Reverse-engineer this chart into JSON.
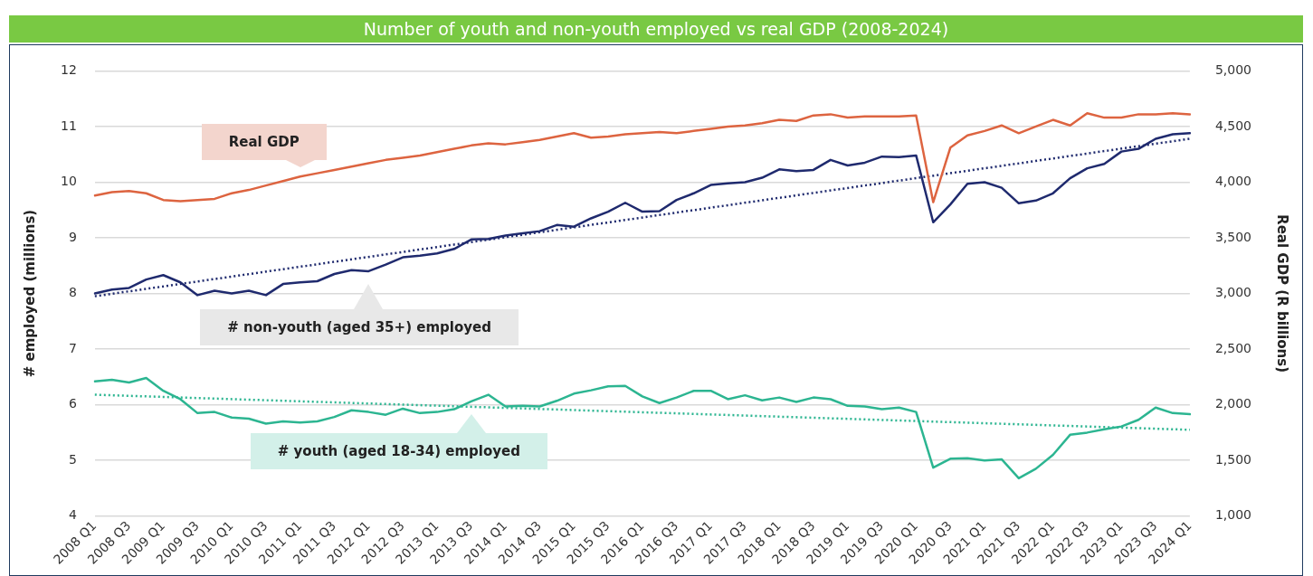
{
  "chart_data": {
    "type": "line",
    "title": "Number of youth and non-youth employed vs real GDP (2008-2024)",
    "ylabel": "# employed (millions)",
    "y2label": "Real GDP (R billions)",
    "categories": [
      "2008 Q1",
      null,
      "2008 Q3",
      null,
      "2009 Q1",
      null,
      "2009 Q3",
      null,
      "2010 Q1",
      null,
      "2010 Q3",
      null,
      "2011 Q1",
      null,
      "2011 Q3",
      null,
      "2012 Q1",
      null,
      "2012 Q3",
      null,
      "2013 Q1",
      null,
      "2013 Q3",
      null,
      "2014 Q1",
      null,
      "2014 Q3",
      null,
      "2015 Q1",
      null,
      "2015 Q3",
      null,
      "2016 Q1",
      null,
      "2016 Q3",
      null,
      "2017 Q1",
      null,
      "2017 Q3",
      null,
      "2018 Q1",
      null,
      "2018 Q3",
      null,
      "2019 Q1",
      null,
      "2019 Q3",
      null,
      "2020 Q1",
      null,
      "2020 Q3",
      null,
      "2021 Q1",
      null,
      "2021 Q3",
      null,
      "2022 Q1",
      null,
      "2022 Q3",
      null,
      "2023 Q1",
      null,
      "2023 Q3",
      null,
      "2024 Q1"
    ],
    "series": [
      {
        "name": "Real GDP",
        "color": "#dd6440",
        "axis": "y2",
        "values": [
          3880,
          3910,
          3920,
          3900,
          3840,
          3830,
          3840,
          3850,
          3900,
          3930,
          3970,
          4010,
          4050,
          4080,
          4110,
          4140,
          4170,
          4200,
          4220,
          4240,
          4270,
          4300,
          4330,
          4350,
          4340,
          4360,
          4380,
          4410,
          4440,
          4400,
          4410,
          4430,
          4440,
          4450,
          4440,
          4460,
          4480,
          4500,
          4510,
          4530,
          4560,
          4550,
          4600,
          4610,
          4580,
          4590,
          4590,
          4590,
          4600,
          3820,
          4310,
          4420,
          4460,
          4510,
          4440,
          4500,
          4560,
          4510,
          4620,
          4580,
          4580,
          4610,
          4610,
          4620,
          4610
        ]
      },
      {
        "name": "# non-youth (aged 35+) employed",
        "color": "#1f2a6e",
        "values": [
          8.0,
          8.07,
          8.1,
          8.25,
          8.33,
          8.2,
          7.97,
          8.05,
          8.0,
          8.05,
          7.97,
          8.17,
          8.2,
          8.22,
          8.35,
          8.42,
          8.4,
          8.52,
          8.65,
          8.68,
          8.72,
          8.8,
          8.97,
          8.98,
          9.04,
          9.08,
          9.12,
          9.23,
          9.2,
          9.35,
          9.47,
          9.63,
          9.47,
          9.48,
          9.68,
          9.8,
          9.95,
          9.98,
          10.0,
          10.08,
          10.23,
          10.2,
          10.22,
          10.4,
          10.3,
          10.35,
          10.46,
          10.45,
          10.48,
          9.28,
          9.6,
          9.97,
          10.0,
          9.9,
          9.62,
          9.67,
          9.8,
          10.07,
          10.25,
          10.33,
          10.55,
          10.6,
          10.78,
          10.86,
          10.88
        ]
      },
      {
        "name": "# youth (aged 18-34) employed",
        "color": "#2cb591",
        "values": [
          6.42,
          6.45,
          6.4,
          6.48,
          6.25,
          6.1,
          5.85,
          5.87,
          5.77,
          5.75,
          5.66,
          5.7,
          5.68,
          5.7,
          5.78,
          5.9,
          5.87,
          5.82,
          5.93,
          5.85,
          5.87,
          5.92,
          6.06,
          6.18,
          5.97,
          5.98,
          5.97,
          6.07,
          6.2,
          6.26,
          6.33,
          6.34,
          6.15,
          6.03,
          6.13,
          6.25,
          6.25,
          6.1,
          6.17,
          6.08,
          6.13,
          6.05,
          6.13,
          6.1,
          5.98,
          5.97,
          5.92,
          5.95,
          5.87,
          4.87,
          5.03,
          5.04,
          5.0,
          5.02,
          4.68,
          4.85,
          5.1,
          5.46,
          5.5,
          5.56,
          5.61,
          5.73,
          5.95,
          5.85,
          5.83
        ]
      },
      {
        "type": "line",
        "line_style": "dotted",
        "color": "#1f2a6e",
        "x": [
          "2008 Q1",
          "2024 Q1"
        ],
        "values": [
          7.95,
          10.78
        ]
      },
      {
        "type": "line",
        "line_style": "dotted",
        "color": "#2cb591",
        "x": [
          "2008 Q1",
          "2024 Q1"
        ],
        "values": [
          6.18,
          5.55
        ]
      }
    ],
    "ylim": [
      4,
      12
    ],
    "yticks": [
      4,
      5,
      6,
      7,
      8,
      9,
      10,
      11,
      12
    ],
    "y2lim": [
      1000,
      5000
    ],
    "y2ticks": [
      {
        "value": 1000,
        "label": "1,000"
      },
      {
        "value": 1500,
        "label": "1,500"
      },
      {
        "value": 2000,
        "label": "2,000"
      },
      {
        "value": 2500,
        "label": "2,500"
      },
      {
        "value": 3000,
        "label": "3,000"
      },
      {
        "value": 3500,
        "label": "3,500"
      },
      {
        "value": 4000,
        "label": "4,000"
      },
      {
        "value": 4500,
        "label": "4,500"
      },
      {
        "value": 5000,
        "label": "5,000"
      }
    ],
    "grid": "y",
    "legend": false,
    "marker": "none",
    "line_style": "solid"
  }
}
